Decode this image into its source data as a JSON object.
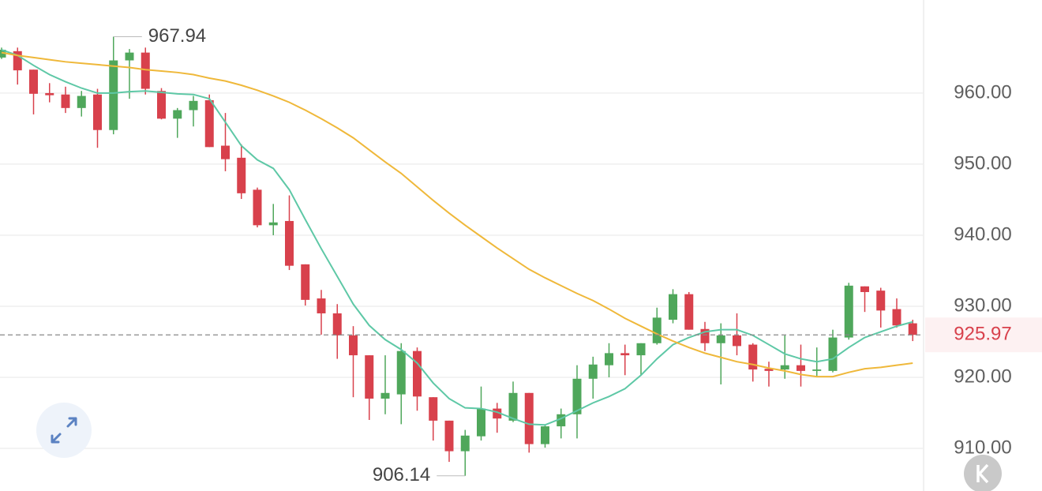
{
  "chart_data": {
    "type": "candlestick",
    "up_color": "#4fa75b",
    "down_color": "#d8414c",
    "open": [
      965.0,
      965.9,
      963.3,
      960.0,
      959.8,
      957.9,
      959.8,
      954.8,
      964.6,
      965.7,
      960.3,
      956.4,
      957.6,
      959.0,
      952.6,
      950.9,
      946.4,
      941.4,
      942.0,
      935.9,
      931.1,
      929.0,
      925.9,
      923.1,
      917.0,
      917.6,
      923.7,
      917.2,
      913.9,
      909.6,
      911.7,
      915.6,
      913.9,
      917.8,
      910.6,
      913.1,
      914.8,
      919.8,
      921.7,
      923.4,
      923.1,
      924.8,
      928.1,
      931.7,
      926.8,
      924.8,
      925.9,
      924.6,
      921.2,
      921.1,
      921.7,
      920.9,
      920.9,
      925.6,
      932.8,
      932.2,
      929.6,
      927.6
    ],
    "high": [
      966.4,
      966.4,
      963.3,
      961.4,
      960.9,
      960.3,
      960.6,
      967.94,
      966.2,
      966.4,
      960.7,
      957.9,
      959.6,
      959.8,
      957.2,
      952.8,
      946.7,
      944.4,
      945.6,
      935.9,
      932.3,
      930.3,
      927.2,
      923.1,
      923.1,
      924.8,
      924.2,
      917.2,
      913.9,
      912.6,
      918.7,
      916.4,
      919.4,
      917.8,
      913.4,
      915.6,
      921.7,
      922.9,
      924.8,
      924.6,
      924.8,
      929.8,
      932.4,
      932.0,
      927.8,
      927.6,
      929.0,
      924.8,
      922.2,
      925.9,
      924.6,
      924.2,
      926.7,
      933.3,
      932.8,
      932.6,
      931.1,
      928.1
    ],
    "low": [
      964.8,
      961.2,
      957.0,
      958.7,
      957.2,
      956.7,
      952.3,
      954.2,
      959.2,
      959.8,
      956.3,
      953.7,
      955.3,
      952.4,
      949.0,
      945.1,
      941.1,
      940.0,
      935.1,
      930.1,
      926.0,
      922.6,
      917.2,
      914.0,
      914.8,
      913.4,
      915.3,
      911.1,
      908.1,
      906.14,
      911.1,
      912.2,
      913.7,
      909.4,
      910.1,
      911.4,
      911.4,
      917.0,
      920.0,
      920.3,
      920.3,
      924.6,
      927.6,
      926.7,
      923.7,
      919.0,
      923.1,
      919.4,
      918.7,
      919.8,
      918.7,
      920.0,
      920.7,
      925.3,
      929.2,
      927.0,
      927.0,
      925.1
    ],
    "close": [
      966.1,
      963.2,
      959.9,
      959.7,
      957.9,
      959.6,
      954.8,
      964.6,
      965.7,
      960.6,
      956.4,
      957.6,
      958.9,
      952.4,
      950.7,
      945.9,
      941.4,
      941.8,
      935.7,
      930.9,
      929.0,
      925.9,
      923.1,
      917.0,
      917.8,
      923.7,
      917.3,
      913.9,
      909.6,
      911.8,
      915.6,
      914.2,
      917.8,
      910.6,
      913.1,
      914.8,
      919.8,
      921.8,
      923.4,
      923.1,
      924.8,
      928.4,
      931.7,
      926.7,
      924.8,
      925.9,
      924.4,
      921.1,
      920.9,
      921.7,
      920.9,
      921.1,
      925.6,
      932.9,
      932.0,
      929.4,
      927.3,
      925.97
    ],
    "moving_averages": [
      {
        "color": "#5ec8a6",
        "values": [
          966.1,
          965.3,
          963.9,
          962.6,
          961.6,
          960.7,
          960.0,
          960.0,
          960.2,
          960.3,
          960.1,
          959.9,
          959.8,
          959.2,
          955.9,
          952.6,
          950.6,
          949.4,
          946.4,
          942.2,
          938.1,
          934.2,
          930.3,
          927.3,
          925.3,
          923.9,
          922.0,
          919.2,
          917.0,
          915.7,
          915.6,
          915.1,
          914.2,
          913.4,
          913.3,
          914.2,
          915.3,
          916.4,
          917.3,
          918.4,
          920.3,
          922.6,
          924.6,
          925.6,
          926.4,
          926.7,
          926.7,
          925.9,
          924.6,
          923.3,
          922.6,
          922.2,
          922.6,
          924.2,
          925.6,
          926.4,
          927.2,
          927.8
        ]
      },
      {
        "color": "#efb83a",
        "values": [
          965.7,
          965.3,
          965.0,
          964.7,
          964.4,
          964.2,
          964.0,
          963.8,
          963.6,
          963.3,
          963.1,
          962.9,
          962.6,
          962.1,
          961.7,
          961.1,
          960.4,
          959.6,
          958.7,
          957.6,
          956.4,
          955.1,
          953.7,
          952.0,
          950.3,
          948.7,
          946.8,
          944.9,
          943.1,
          941.4,
          939.8,
          938.2,
          936.7,
          935.2,
          934.0,
          932.9,
          931.8,
          930.8,
          929.6,
          928.3,
          927.2,
          926.1,
          925.1,
          924.2,
          923.4,
          922.8,
          922.2,
          921.8,
          921.3,
          920.9,
          920.4,
          920.1,
          920.1,
          920.7,
          921.2,
          921.4,
          921.7,
          922.0
        ]
      }
    ],
    "ylim": [
      904,
      973.1
    ],
    "yticks": [
      {
        "value": 910,
        "label": "910.00"
      },
      {
        "value": 920,
        "label": "920.00"
      },
      {
        "value": 930,
        "label": "930.00"
      },
      {
        "value": 940,
        "label": "940.00"
      },
      {
        "value": 950,
        "label": "950.00"
      },
      {
        "value": 960,
        "label": "960.00"
      }
    ],
    "grid": true
  }
}
